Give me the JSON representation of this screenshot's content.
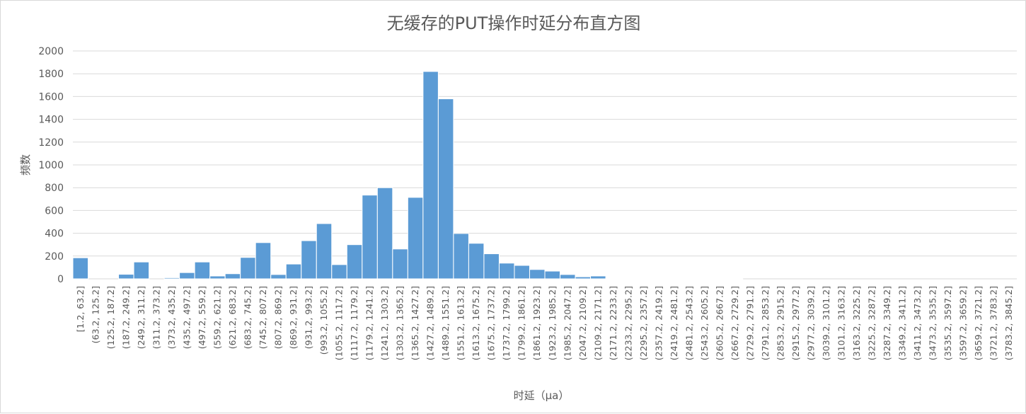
{
  "chart_data": {
    "type": "bar",
    "title": "无缓存的PUT操作时延分布直方图",
    "xlabel": "时延（μa）",
    "ylabel": "频数",
    "ylim": [
      0,
      2000
    ],
    "yticks": [
      0,
      200,
      400,
      600,
      800,
      1000,
      1200,
      1400,
      1600,
      1800,
      2000
    ],
    "grid": true,
    "legend": "none",
    "bar_color": "#5b9bd5",
    "categories": [
      "[1.2, 63.2]",
      "(63.2, 125.2]",
      "(125.2, 187.2]",
      "(187.2, 249.2]",
      "(249.2, 311.2]",
      "(311.2, 373.2]",
      "(373.2, 435.2]",
      "(435.2, 497.2]",
      "(497.2, 559.2]",
      "(559.2, 621.2]",
      "(621.2, 683.2]",
      "(683.2, 745.2]",
      "(745.2, 807.2]",
      "(807.2, 869.2]",
      "(869.2, 931.2]",
      "(931.2, 993.2]",
      "(993.2, 1055.2]",
      "(1055.2, 1117.2]",
      "(1117.2, 1179.2]",
      "(1179.2, 1241.2]",
      "(1241.2, 1303.2]",
      "(1303.2, 1365.2]",
      "(1365.2, 1427.2]",
      "(1427.2, 1489.2]",
      "(1489.2, 1551.2]",
      "(1551.2, 1613.2]",
      "(1613.2, 1675.2]",
      "(1675.2, 1737.2]",
      "(1737.2, 1799.2]",
      "(1799.2, 1861.2]",
      "(1861.2, 1923.2]",
      "(1923.2, 1985.2]",
      "(1985.2, 2047.2]",
      "(2047.2, 2109.2]",
      "(2109.2, 2171.2]",
      "(2171.2, 2233.2]",
      "(2233.2, 2295.2]",
      "(2295.2, 2357.2]",
      "(2357.2, 2419.2]",
      "(2419.2, 2481.2]",
      "(2481.2, 2543.2]",
      "(2543.2, 2605.2]",
      "(2605.2, 2667.2]",
      "(2667.2, 2729.2]",
      "(2729.2, 2791.2]",
      "(2791.2, 2853.2]",
      "(2853.2, 2915.2]",
      "(2915.2, 2977.2]",
      "(2977.2, 3039.2]",
      "(3039.2, 3101.2]",
      "(3101.2, 3163.2]",
      "(3163.2, 3225.2]",
      "(3225.2, 3287.2]",
      "(3287.2, 3349.2]",
      "(3349.2, 3411.2]",
      "(3411.2, 3473.2]",
      "(3473.2, 3535.2]",
      "(3535.2, 3597.2]",
      "(3597.2, 3659.2]",
      "(3659.2, 3721.2]",
      "(3721.2, 3783.2]",
      "(3783.2, 3845.2]"
    ],
    "values": [
      185,
      0,
      0,
      40,
      148,
      0,
      10,
      55,
      148,
      25,
      45,
      188,
      318,
      38,
      130,
      335,
      485,
      125,
      300,
      735,
      800,
      262,
      715,
      1820,
      1580,
      398,
      312,
      220,
      138,
      118,
      82,
      68,
      38,
      18,
      25,
      3,
      2,
      2,
      2,
      1,
      1,
      1,
      1,
      1,
      0,
      0,
      0,
      0,
      0,
      0,
      0,
      0,
      0,
      0,
      0,
      0,
      0,
      0,
      0,
      0,
      0,
      0
    ]
  }
}
